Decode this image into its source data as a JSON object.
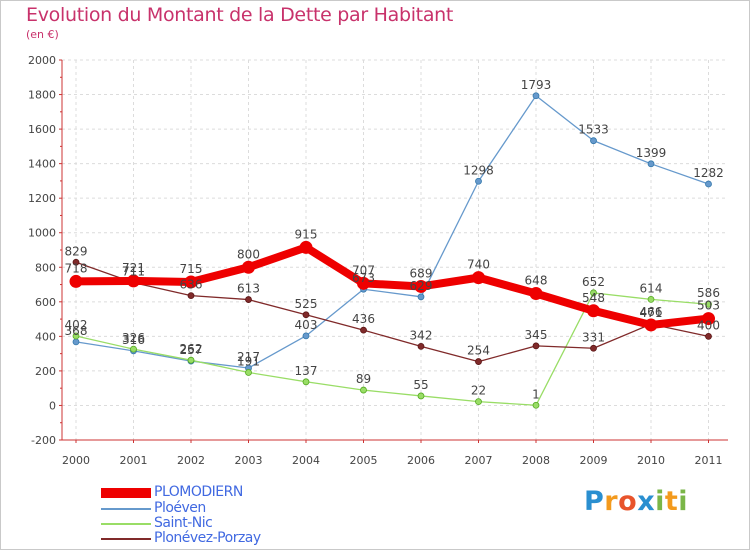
{
  "title": "Evolution du Montant de la Dette par Habitant",
  "unit": "(en €)",
  "brand": {
    "letters": [
      "P",
      "r",
      "o",
      "x",
      "i",
      "t",
      "i"
    ],
    "colors": [
      "#2a8fd0",
      "#f39a1d",
      "#e8542c",
      "#2a8fd0",
      "#7ab648",
      "#f39a1d",
      "#7ab648"
    ]
  },
  "chart_data": {
    "type": "line",
    "title": "Evolution du Montant de la Dette par Habitant",
    "ylabel": "(en €)",
    "xlabel": "",
    "x": [
      "2000",
      "2001",
      "2002",
      "2003",
      "2004",
      "2005",
      "2006",
      "2007",
      "2008",
      "2009",
      "2010",
      "2011"
    ],
    "ylim": [
      -200,
      2000
    ],
    "yticks": [
      "-200",
      "0",
      "200",
      "400",
      "600",
      "800",
      "1000",
      "1200",
      "1400",
      "1600",
      "1800",
      "2000"
    ],
    "grid": true,
    "legend": "bottom-left",
    "series": [
      {
        "name": "PLOMODIERN",
        "color": "#ee0000",
        "values": [
          718,
          721,
          715,
          800,
          915,
          707,
          689,
          740,
          648,
          548,
          466,
          503
        ],
        "labels": [
          "718",
          "721",
          "715",
          "800",
          "915",
          "707",
          "689",
          "740",
          "648",
          "548",
          "466",
          "503"
        ]
      },
      {
        "name": "Ploéven",
        "color": "#6699cc",
        "values": [
          368,
          316,
          257,
          217,
          403,
          673,
          629,
          1298,
          1793,
          1533,
          1399,
          1282
        ],
        "labels": [
          "368",
          "316",
          "257",
          "217",
          "403",
          "673",
          "629",
          "1298",
          "1793",
          "1533",
          "1399",
          "1282"
        ]
      },
      {
        "name": "Saint-Nic",
        "color": "#99dd66",
        "values": [
          402,
          326,
          262,
          191,
          137,
          89,
          55,
          22,
          1,
          652,
          614,
          586
        ],
        "labels": [
          "402",
          "326",
          "262",
          "191",
          "137",
          "89",
          "55",
          "22",
          "1",
          "652",
          "614",
          "586"
        ]
      },
      {
        "name": "Plonévez-Porzay",
        "color": "#802a2a",
        "values": [
          829,
          711,
          636,
          613,
          525,
          436,
          342,
          254,
          345,
          331,
          471,
          400
        ],
        "labels": [
          "829",
          "711",
          "636",
          "613",
          "525",
          "436",
          "342",
          "254",
          "345",
          "331",
          "471",
          "400"
        ]
      }
    ]
  }
}
